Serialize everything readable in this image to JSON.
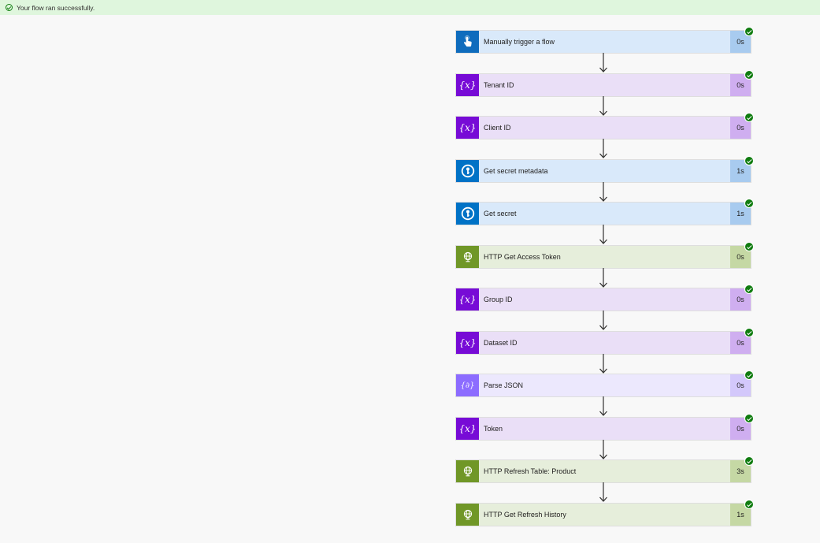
{
  "banner": {
    "message": "Your flow ran successfully.",
    "icon": "check-circle-icon"
  },
  "steps": [
    {
      "label": "Manually trigger a flow",
      "duration": "0s",
      "icon": "touch-icon",
      "icon_bg": "#0f6cbd",
      "row_bg": "#d9e9fa",
      "dur_bg": "#a8cbef",
      "status": "succeeded"
    },
    {
      "label": "Tenant ID",
      "duration": "0s",
      "icon": "variable-icon",
      "icon_bg": "#770bd6",
      "row_bg": "#eadff7",
      "dur_bg": "#cfaef0",
      "status": "succeeded"
    },
    {
      "label": "Client ID",
      "duration": "0s",
      "icon": "variable-icon",
      "icon_bg": "#770bd6",
      "row_bg": "#eadff7",
      "dur_bg": "#cfaef0",
      "status": "succeeded"
    },
    {
      "label": "Get secret metadata",
      "duration": "1s",
      "icon": "key-vault-icon",
      "icon_bg": "#0072c6",
      "row_bg": "#d9e9fa",
      "dur_bg": "#a8cbef",
      "status": "succeeded"
    },
    {
      "label": "Get secret",
      "duration": "1s",
      "icon": "key-vault-icon",
      "icon_bg": "#0072c6",
      "row_bg": "#d9e9fa",
      "dur_bg": "#a8cbef",
      "status": "succeeded"
    },
    {
      "label": "HTTP Get Access Token",
      "duration": "0s",
      "icon": "globe-icon",
      "icon_bg": "#709727",
      "row_bg": "#e6eedb",
      "dur_bg": "#c5d8a4",
      "status": "succeeded"
    },
    {
      "label": "Group ID",
      "duration": "0s",
      "icon": "variable-icon",
      "icon_bg": "#770bd6",
      "row_bg": "#eadff7",
      "dur_bg": "#cfaef0",
      "status": "succeeded"
    },
    {
      "label": "Dataset ID",
      "duration": "0s",
      "icon": "variable-icon",
      "icon_bg": "#770bd6",
      "row_bg": "#eadff7",
      "dur_bg": "#cfaef0",
      "status": "succeeded"
    },
    {
      "label": "Parse JSON",
      "duration": "0s",
      "icon": "data-operation-icon",
      "icon_bg": "#8c6cff",
      "row_bg": "#ece8fd",
      "dur_bg": "#d3c8fb",
      "status": "succeeded"
    },
    {
      "label": "Token",
      "duration": "0s",
      "icon": "variable-icon",
      "icon_bg": "#770bd6",
      "row_bg": "#eadff7",
      "dur_bg": "#cfaef0",
      "status": "succeeded"
    },
    {
      "label": "HTTP Refresh Table: Product",
      "duration": "3s",
      "icon": "globe-icon",
      "icon_bg": "#709727",
      "row_bg": "#e6eedb",
      "dur_bg": "#c5d8a4",
      "status": "succeeded"
    },
    {
      "label": "HTTP Get Refresh History",
      "duration": "1s",
      "icon": "globe-icon",
      "icon_bg": "#709727",
      "row_bg": "#e6eedb",
      "dur_bg": "#c5d8a4",
      "status": "succeeded"
    }
  ]
}
